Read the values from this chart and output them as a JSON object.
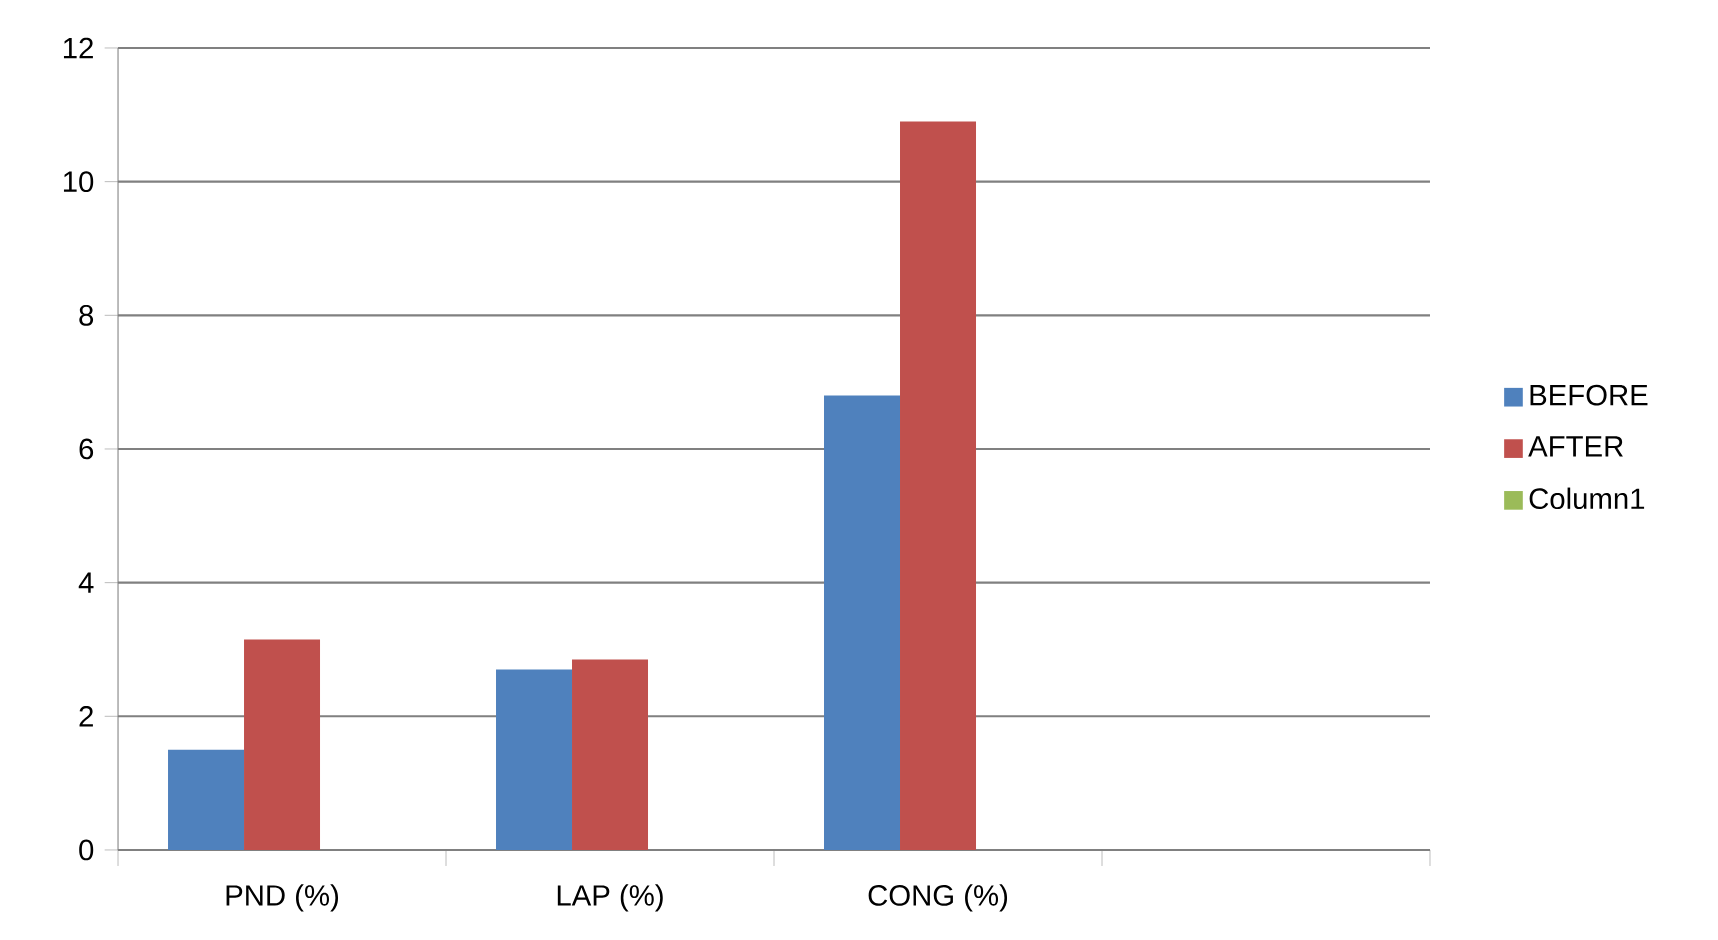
{
  "chart_data": {
    "type": "bar",
    "categories": [
      "PND (%)",
      "LAP (%)",
      "CONG (%)",
      null
    ],
    "series": [
      {
        "name": "BEFORE",
        "color": "#4f81bd",
        "values": [
          1.5,
          2.7,
          6.8,
          null
        ]
      },
      {
        "name": "AFTER",
        "color": "#c0504d",
        "values": [
          3.15,
          2.85,
          10.9,
          null
        ]
      },
      {
        "name": "Column1",
        "color": "#9bbb59",
        "values": [
          null,
          null,
          null,
          null
        ]
      }
    ],
    "ylim": [
      0,
      12
    ],
    "yticks": [
      0,
      2,
      4,
      6,
      8,
      10,
      12
    ],
    "grid": "y",
    "legend": "right"
  }
}
